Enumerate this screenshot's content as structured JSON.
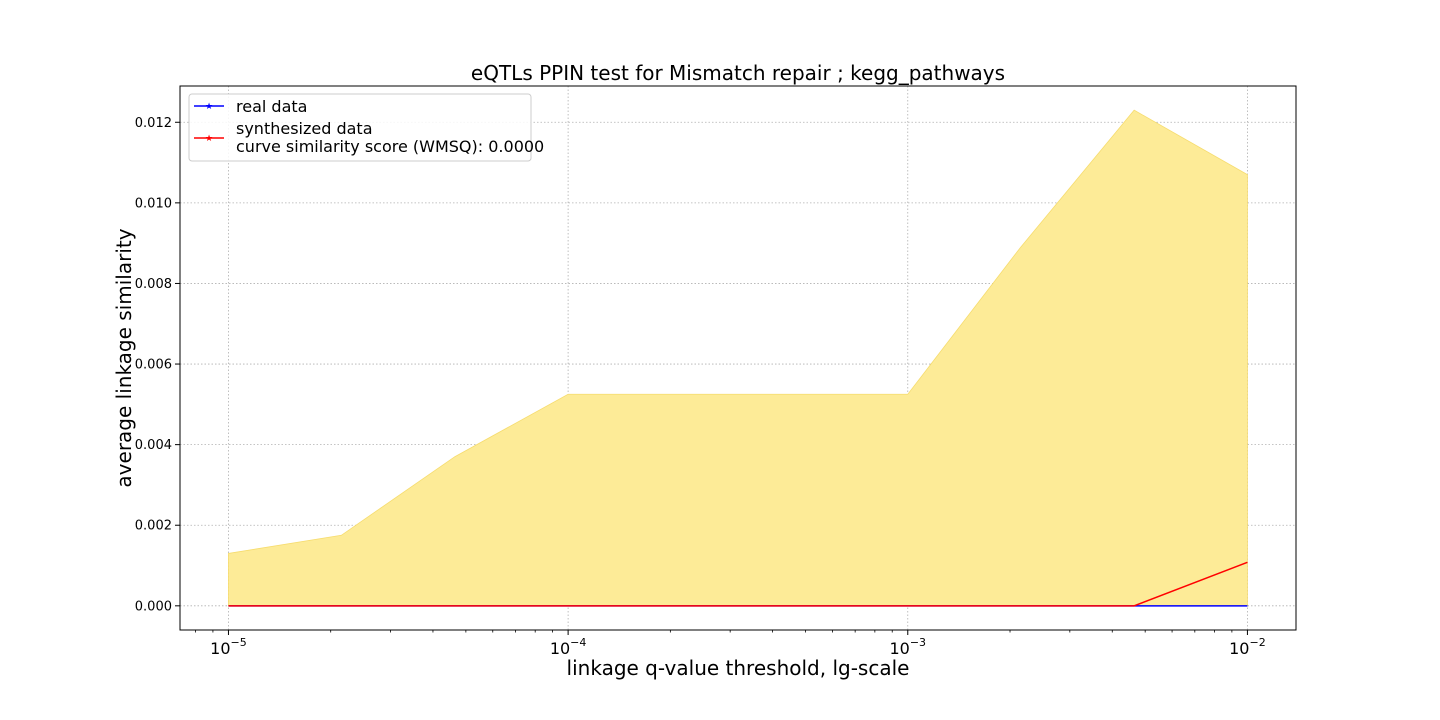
{
  "chart_data": {
    "type": "line",
    "title": "eQTLs PPIN test for Mismatch repair ; kegg_pathways",
    "xlabel": "linkage q-value threshold, lg-scale",
    "ylabel": "average linkage similarity",
    "xscale": "log",
    "xlim": [
      7.2e-06,
      0.0139
    ],
    "ylim": [
      -0.0006,
      0.0129
    ],
    "grid": true,
    "legend_position": "top-left",
    "x": [
      1e-05,
      2.15e-05,
      4.64e-05,
      0.0001,
      0.000215,
      0.000464,
      0.001,
      0.00215,
      0.00464,
      0.01
    ],
    "band": {
      "color": "#fdeb97",
      "lower": [
        0,
        0,
        0,
        0,
        0,
        0,
        0,
        0,
        0,
        0
      ],
      "upper": [
        0.0013,
        0.00175,
        0.0037,
        0.00525,
        0.00525,
        0.00525,
        0.00525,
        0.0089,
        0.0123,
        0.0107
      ]
    },
    "series": [
      {
        "name": "real data",
        "color": "#0000ff",
        "values": [
          0,
          0,
          0,
          0,
          0,
          0,
          0,
          0,
          0,
          0
        ]
      },
      {
        "name": "synthesized data\ncurve similarity score (WMSQ): 0.0000",
        "color": "#ff0000",
        "values": [
          0,
          0,
          0,
          0,
          0,
          0,
          0,
          0,
          0,
          0.00108
        ]
      }
    ],
    "yticks": [
      0,
      0.002,
      0.004,
      0.006,
      0.008,
      0.01,
      0.012
    ],
    "ytick_labels": [
      "0.000",
      "0.002",
      "0.004",
      "0.006",
      "0.008",
      "0.010",
      "0.012"
    ],
    "xticks": [
      1e-05,
      0.0001,
      0.001,
      0.01
    ],
    "xtick_bases": [
      "10",
      "10",
      "10",
      "10"
    ],
    "xtick_exponents": [
      "−5",
      "−4",
      "−3",
      "−2"
    ]
  }
}
